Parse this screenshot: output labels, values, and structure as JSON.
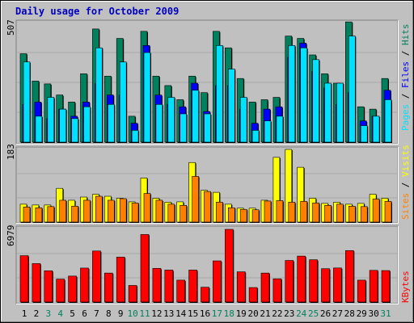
{
  "title": "Daily usage for October 2009",
  "colors": {
    "background": "#C0C0C0",
    "title": "#0000C0",
    "hits": "#00805C",
    "files": "#0000FF",
    "pages": "#00E0FF",
    "visits": "#FFFF00",
    "sites": "#FF8000",
    "kbytes": "#FF0000",
    "weekend_label": "#00805C"
  },
  "chart_data": [
    {
      "type": "bar",
      "name": "hits-files-pages",
      "scale_max_label": "507",
      "ymax": 507,
      "legend": {
        "pages": "Pages",
        "files": "Files",
        "hits": "Hits",
        "separator": " / "
      },
      "categories": [
        "1",
        "2",
        "3",
        "4",
        "5",
        "6",
        "7",
        "8",
        "9",
        "10",
        "11",
        "12",
        "13",
        "14",
        "15",
        "16",
        "17",
        "18",
        "19",
        "20",
        "21",
        "22",
        "23",
        "24",
        "25",
        "26",
        "27",
        "28",
        "29",
        "30",
        "31"
      ],
      "series": [
        {
          "name": "Hits",
          "values": [
            375,
            259,
            247,
            200,
            170,
            290,
            480,
            280,
            440,
            110,
            470,
            280,
            240,
            180,
            280,
            210,
            470,
            400,
            270,
            170,
            180,
            190,
            450,
            440,
            370,
            290,
            250,
            510,
            150,
            140,
            270
          ]
        },
        {
          "name": "Files",
          "values": [
            160,
            170,
            100,
            140,
            110,
            170,
            250,
            200,
            200,
            80,
            410,
            200,
            160,
            150,
            250,
            130,
            240,
            240,
            140,
            80,
            140,
            150,
            360,
            420,
            300,
            230,
            160,
            210,
            90,
            110,
            220
          ]
        },
        {
          "name": "Pages",
          "values": [
            340,
            110,
            190,
            140,
            100,
            150,
            400,
            160,
            340,
            50,
            380,
            160,
            190,
            120,
            220,
            120,
            410,
            310,
            190,
            50,
            90,
            110,
            410,
            400,
            350,
            250,
            250,
            450,
            70,
            110,
            180
          ]
        }
      ]
    },
    {
      "type": "bar",
      "name": "visits-sites",
      "scale_max_label": "183",
      "ymax": 183,
      "legend": {
        "sites": "Sites",
        "visits": "Visits",
        "separator": " / "
      },
      "categories": [
        "1",
        "2",
        "3",
        "4",
        "5",
        "6",
        "7",
        "8",
        "9",
        "10",
        "11",
        "12",
        "13",
        "14",
        "15",
        "16",
        "17",
        "18",
        "19",
        "20",
        "21",
        "22",
        "23",
        "24",
        "25",
        "26",
        "27",
        "28",
        "29",
        "30",
        "31"
      ],
      "series": [
        {
          "name": "Visits",
          "values": [
            45,
            43,
            43,
            85,
            55,
            63,
            70,
            65,
            60,
            51,
            111,
            60,
            50,
            51,
            150,
            80,
            75,
            45,
            35,
            35,
            55,
            163,
            183,
            138,
            60,
            47,
            50,
            45,
            47,
            70,
            60
          ]
        },
        {
          "name": "Sites",
          "values": [
            38,
            36,
            39,
            55,
            40,
            55,
            65,
            55,
            59,
            48,
            72,
            55,
            45,
            42,
            115,
            77,
            50,
            36,
            32,
            31,
            53,
            54,
            50,
            52,
            48,
            42,
            45,
            40,
            39,
            58,
            52
          ]
        }
      ]
    },
    {
      "type": "bar",
      "name": "kbytes",
      "scale_max_label": "6979",
      "ymax": 6979,
      "legend": {
        "kbytes": "KBytes"
      },
      "categories": [
        "1",
        "2",
        "3",
        "4",
        "5",
        "6",
        "7",
        "8",
        "9",
        "10",
        "11",
        "12",
        "13",
        "14",
        "15",
        "16",
        "17",
        "18",
        "19",
        "20",
        "21",
        "22",
        "23",
        "24",
        "25",
        "26",
        "27",
        "28",
        "29",
        "30",
        "31"
      ],
      "series": [
        {
          "name": "KBytes",
          "values": [
            4450,
            3690,
            3000,
            2200,
            2490,
            3260,
            4900,
            2780,
            4310,
            1590,
            6480,
            3230,
            3070,
            2100,
            3070,
            1420,
            3950,
            6979,
            2900,
            1390,
            2780,
            2230,
            3990,
            4410,
            4060,
            3200,
            3270,
            4940,
            2100,
            3040,
            3020
          ]
        }
      ]
    }
  ],
  "weekend_days": [
    "3",
    "4",
    "10",
    "11",
    "17",
    "18",
    "24",
    "25",
    "31"
  ]
}
